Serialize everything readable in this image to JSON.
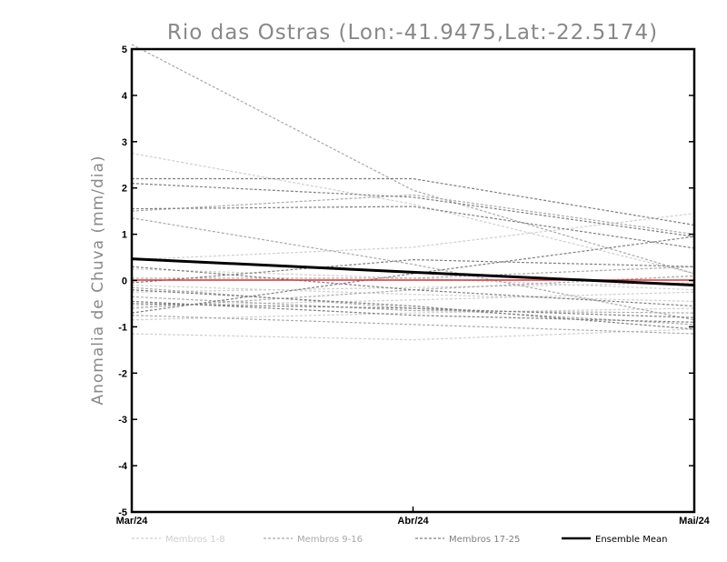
{
  "chart_data": {
    "type": "line",
    "title": "Rio das Ostras (Lon:-41.9475,Lat:-22.5174)",
    "xlabel": "",
    "ylabel": "Anomalia de Chuva (mm/dia)",
    "categories": [
      "Mar/24",
      "Abr/24",
      "Mai/24"
    ],
    "y_ticks": [
      "5",
      "4",
      "3",
      "2",
      "1",
      "0",
      "-1",
      "-2",
      "-3",
      "-4",
      "-5"
    ],
    "ylim": [
      -5,
      5
    ],
    "grid": false,
    "legend_position": "bottom",
    "zero_line_color": "#e03030",
    "groups": [
      {
        "name": "Membros 1-8",
        "color": "#cfcfcf",
        "members": [
          [
            2.75,
            1.65,
            0.15
          ],
          [
            0.45,
            0.72,
            1.45
          ],
          [
            -1.15,
            -1.28,
            -1.05
          ],
          [
            -0.55,
            -0.42,
            -0.25
          ],
          [
            -0.1,
            -0.3,
            -0.45
          ],
          [
            0.25,
            0.05,
            -0.2
          ],
          [
            -0.25,
            -0.15,
            -0.05
          ],
          [
            -0.85,
            -0.7,
            -0.6
          ]
        ]
      },
      {
        "name": "Membros 9-16",
        "color": "#a9a9a9",
        "members": [
          [
            5.1,
            1.95,
            0.15
          ],
          [
            1.35,
            0.35,
            -0.85
          ],
          [
            1.5,
            1.85,
            1.0
          ],
          [
            -0.15,
            -0.6,
            -0.95
          ],
          [
            0.05,
            0.05,
            0.3
          ],
          [
            -0.6,
            -0.2,
            0.1
          ],
          [
            -0.75,
            -0.95,
            -1.15
          ],
          [
            -0.35,
            -0.65,
            -0.7
          ]
        ]
      },
      {
        "name": "Membros 17-25",
        "color": "#7f7f7f",
        "members": [
          [
            2.2,
            2.2,
            1.2
          ],
          [
            2.1,
            1.8,
            0.95
          ],
          [
            1.55,
            1.6,
            0.7
          ],
          [
            0.3,
            -0.2,
            -0.55
          ],
          [
            -0.05,
            0.45,
            0.3
          ],
          [
            -0.45,
            -0.75,
            -0.9
          ],
          [
            -0.7,
            0.15,
            0.95
          ],
          [
            -0.5,
            -0.6,
            -0.8
          ],
          [
            -0.2,
            -0.55,
            -1.05
          ]
        ]
      }
    ],
    "ensemble_mean": {
      "name": "Ensemble Mean",
      "color": "#000000",
      "values": [
        0.47,
        0.18,
        -0.1
      ]
    }
  }
}
